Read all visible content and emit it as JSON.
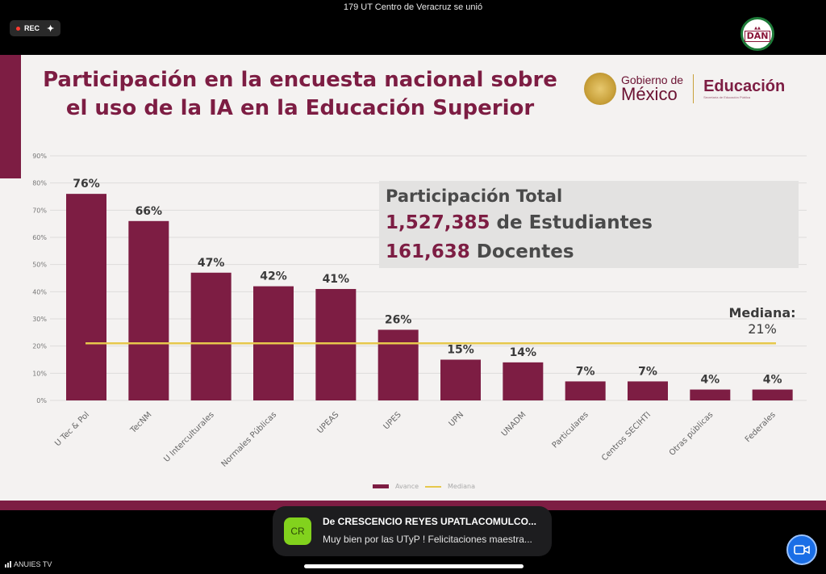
{
  "app": {
    "join_notice": "179 UT Centro de Veracruz se unió",
    "rec_label": "REC",
    "icons": {
      "rec": "recording-dot-icon",
      "sparkle": "sparkle-icon",
      "camera": "video-camera-icon",
      "signal": "signal-bars-icon"
    },
    "channel_label": "ANUIES TV"
  },
  "slide": {
    "title_line1": "Participación en la encuesta nacional sobre",
    "title_line2": "el uso de la IA en la Educación Superior",
    "gob_line1": "Gobierno de",
    "gob_line2": "México",
    "edu_line1": "Educación",
    "edu_line2": "Secretaría de Educación Pública",
    "dan_logo": "DAN",
    "totals": {
      "heading": "Participación Total",
      "students_num": "1,527,385",
      "students_label": "de Estudiantes",
      "teachers_num": "161,638",
      "teachers_label": "Docentes"
    },
    "median_label": "Mediana:",
    "median_value": "21%",
    "colors": {
      "bar": "#7d1d43",
      "median": "#e6c84c",
      "accent": "#7d1d43"
    }
  },
  "chart_data": {
    "type": "bar",
    "categories": [
      "U Tec & Pol",
      "TecNM",
      "U Interculturales",
      "Normales Públicas",
      "UPEAS",
      "UPES",
      "UPN",
      "UNADM",
      "Particulares",
      "Centros SECIHTI",
      "Otras públicas",
      "Federales"
    ],
    "series": [
      {
        "name": "Avance",
        "values": [
          76,
          66,
          47,
          42,
          41,
          26,
          15,
          14,
          7,
          7,
          4,
          4
        ]
      },
      {
        "name": "Mediana",
        "values": [
          21,
          21,
          21,
          21,
          21,
          21,
          21,
          21,
          21,
          21,
          21,
          21
        ]
      }
    ],
    "data_labels": [
      "76%",
      "66%",
      "47%",
      "42%",
      "41%",
      "26%",
      "15%",
      "14%",
      "7%",
      "7%",
      "4%",
      "4%"
    ],
    "yticks": [
      "0%",
      "10%",
      "20%",
      "30%",
      "40%",
      "50%",
      "60%",
      "70%",
      "80%",
      "90%"
    ],
    "ylim": [
      0,
      90
    ],
    "grid": true,
    "legend": "bottom"
  },
  "toast": {
    "avatar_initials": "CR",
    "from": "De CRESCENCIO REYES UPATLACOMULCO...",
    "message": "Muy bien por las UTyP ! Felicitaciones maestra..."
  }
}
